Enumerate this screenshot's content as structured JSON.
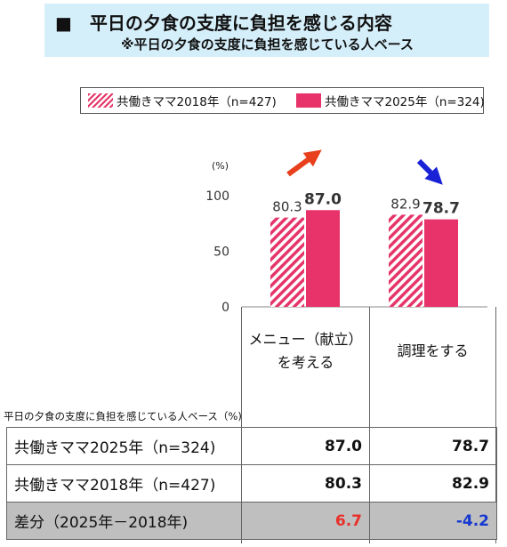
{
  "header": {
    "title": "■　平日の夕食の支度に負担を感じる内容",
    "subtitle": "※平日の夕食の支度に負担を感じている人ベース"
  },
  "legend": {
    "items": [
      {
        "label": "共働きママ2018年（n=427)",
        "style": "hatched"
      },
      {
        "label": "共働きママ2025年（n=324)",
        "style": "solid"
      }
    ]
  },
  "chart_data": {
    "type": "bar",
    "unit_label": "(%)",
    "ylim": [
      0,
      100
    ],
    "yticks": [
      0,
      50,
      100
    ],
    "categories": [
      "メニュー（献立）\nを考える",
      "調理をする"
    ],
    "series": [
      {
        "name": "共働きママ2018年（n=427)",
        "values": [
          80.3,
          82.9
        ],
        "labels": [
          "80.3",
          "82.9"
        ],
        "color": "#e5356a",
        "pattern": "hatched"
      },
      {
        "name": "共働きママ2025年（n=324)",
        "values": [
          87.0,
          78.7
        ],
        "labels": [
          "87.0",
          "78.7"
        ],
        "color": "#e8336a",
        "pattern": "solid"
      }
    ],
    "trend_arrows": [
      {
        "direction": "up",
        "color": "#e8401c"
      },
      {
        "direction": "down",
        "color": "#1a22d6"
      }
    ],
    "base_note": "平日の夕食の支度に負担を感じている人ベース（%)",
    "table": {
      "rows": [
        {
          "label": "共働きママ2025年（n=324)",
          "values": [
            "87.0",
            "78.7"
          ],
          "style": "normal"
        },
        {
          "label": "共働きママ2018年（n=427)",
          "values": [
            "80.3",
            "82.9"
          ],
          "style": "normal"
        },
        {
          "label": "差分（2025年－2018年)",
          "values": [
            "6.7",
            "-4.2"
          ],
          "style": "diff",
          "value_colors": [
            "#e8302a",
            "#1538d0"
          ]
        }
      ]
    }
  }
}
